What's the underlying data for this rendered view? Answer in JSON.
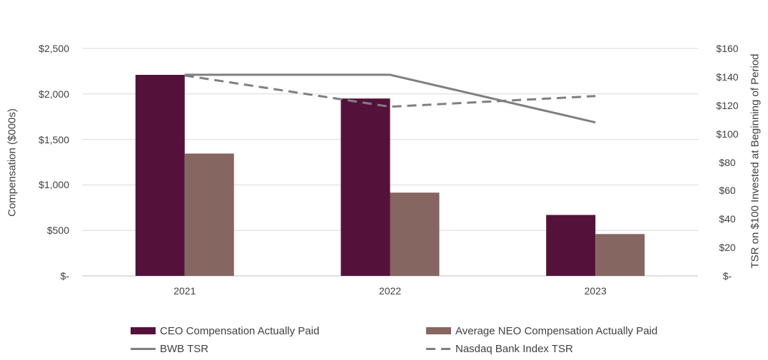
{
  "chart_data": {
    "type": "bar",
    "title": "",
    "categories": [
      "2021",
      "2022",
      "2023"
    ],
    "series": [
      {
        "name": "CEO Compensation Actually Paid",
        "type": "bar",
        "axis": "left",
        "color": "#54123A",
        "values": [
          2210,
          1950,
          670
        ]
      },
      {
        "name": "Average NEO Compensation Actually Paid",
        "type": "bar",
        "axis": "left",
        "color": "#866660",
        "values": [
          1345,
          915,
          460
        ]
      },
      {
        "name": "BWB TSR",
        "type": "line",
        "line_style": "solid",
        "axis": "right",
        "color": "#7F7F7F",
        "values": [
          141.5,
          141.5,
          108
        ]
      },
      {
        "name": "Nasdaq Bank Index TSR",
        "type": "line",
        "line_style": "dashed",
        "axis": "right",
        "color": "#7F7F7F",
        "values": [
          141,
          119,
          126.5
        ]
      }
    ],
    "left_axis": {
      "label": "Compensation ($000s)",
      "min": 0,
      "max": 2500,
      "tick_step": 500,
      "tick_labels": [
        "$-",
        "$500",
        "$1,000",
        "$1,500",
        "$2,000",
        "$2,500"
      ]
    },
    "right_axis": {
      "label": "TSR on $100 Invested at Beginning of Period",
      "min": 0,
      "max": 160,
      "tick_step": 20,
      "tick_labels": [
        "$-",
        "$20",
        "$40",
        "$60",
        "$80",
        "$100",
        "$120",
        "$140",
        "$160"
      ]
    },
    "grid": true,
    "legend_position": "bottom"
  },
  "colors": {
    "gridline": "#D9D9D9",
    "axis_line": "#BFBFBF",
    "text": "#404040"
  }
}
